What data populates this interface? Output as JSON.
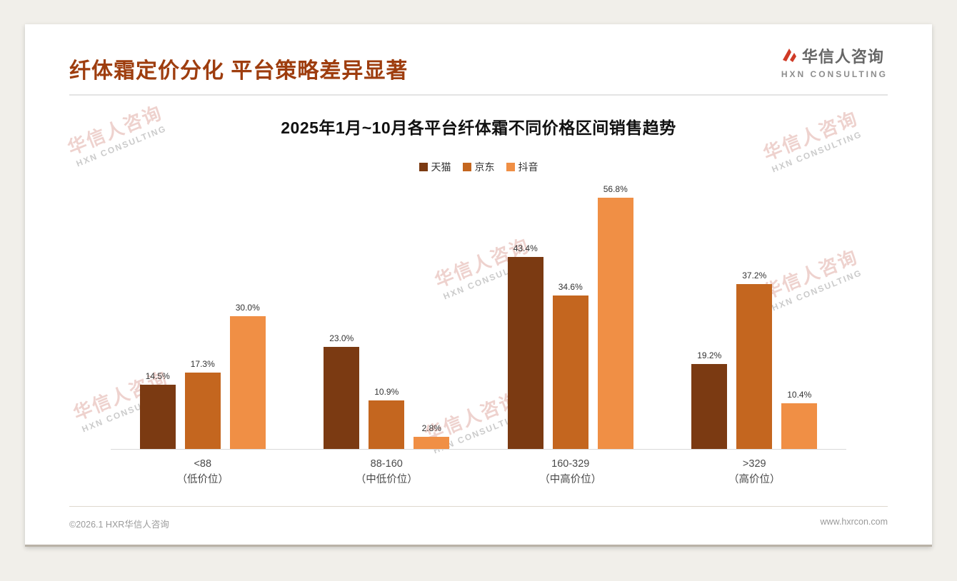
{
  "page": {
    "title": "纤体霜定价分化 平台策略差异显著"
  },
  "logo": {
    "name": "华信人咨询",
    "sub": "HXN CONSULTING"
  },
  "watermark": {
    "line1": "华信人咨询",
    "line2": "HXN CONSULTING"
  },
  "chart_data": {
    "type": "bar",
    "title": "2025年1月~10月各平台纤体霜不同价格区间销售趋势",
    "categories": [
      {
        "line1": "<88",
        "line2": "（低价位）"
      },
      {
        "line1": "88-160",
        "line2": "（中低价位）"
      },
      {
        "line1": "160-329",
        "line2": "（中高价位）"
      },
      {
        "line1": ">329",
        "line2": "（高价位）"
      }
    ],
    "series": [
      {
        "name": "天猫",
        "color": "#7b3a12",
        "values": [
          14.5,
          23.0,
          43.4,
          19.2
        ]
      },
      {
        "name": "京东",
        "color": "#c4661f",
        "values": [
          17.3,
          10.9,
          34.6,
          37.2
        ]
      },
      {
        "name": "抖音",
        "color": "#f08f45",
        "values": [
          30.0,
          2.8,
          56.8,
          10.4
        ]
      }
    ],
    "value_suffix": "%",
    "ylim": [
      0,
      60
    ],
    "legend_position": "top",
    "grid": false,
    "xlabel": "",
    "ylabel": ""
  },
  "footer": {
    "copyright": "©2026.1 HXR华信人咨询",
    "website": "www.hxrcon.com"
  },
  "colors": {
    "title": "#9e3d0e",
    "logo_mark": "#d03a26"
  }
}
